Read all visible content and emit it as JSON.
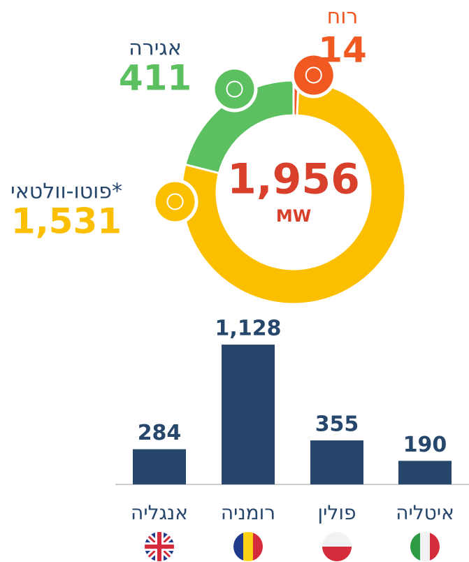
{
  "chart_data": [
    {
      "type": "donut",
      "categories": [
        "רוח",
        "פוטו-וולטאי*",
        "אגירה"
      ],
      "values": [
        14,
        1531,
        411
      ],
      "value_labels": [
        "14",
        "1,531",
        "411"
      ],
      "colors": [
        "#f05a22",
        "#fbbf00",
        "#5cbf60"
      ],
      "total": 1956,
      "total_label": "1,956",
      "unit": "MW"
    },
    {
      "type": "bar",
      "categories": [
        "אנגליה",
        "רומניה",
        "פולין",
        "איטליה"
      ],
      "values": [
        284,
        1128,
        355,
        190
      ],
      "value_labels": [
        "284",
        "1,128",
        "355",
        "190"
      ],
      "color": "#26466b"
    }
  ]
}
